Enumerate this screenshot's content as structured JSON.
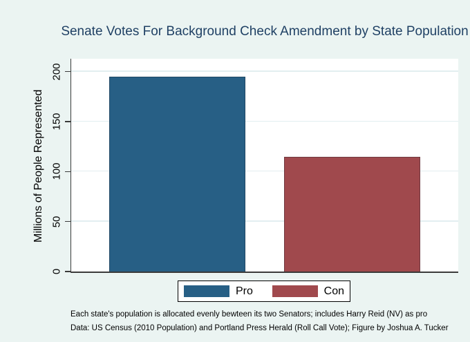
{
  "chart_data": {
    "type": "bar",
    "title": "Senate Votes For Background Check Amendment by State Population",
    "ylabel": "Millions of People Represented",
    "xlabel": "",
    "categories": [
      "Pro",
      "Con"
    ],
    "values": [
      195,
      115
    ],
    "bar_colors": [
      "#275f85",
      "#a0494d"
    ],
    "yticks": [
      0,
      50,
      100,
      150,
      200
    ],
    "ylim": [
      0,
      213
    ],
    "grid": true,
    "legend_position": "bottom-center"
  },
  "notes": {
    "line1": "Each state's population is allocated evenly bewteen its two Senators; includes Harry Reid (NV) as pro",
    "line2": "Data: US Census (2010 Population) and Portland Press Herald (Roll Call Vote); Figure by Joshua A. Tucker"
  },
  "colors": {
    "background": "#ebf4f2",
    "plot_background": "#ffffff",
    "title": "#1f4064",
    "axis": "#3a3a3a",
    "gridline": "#e2eef0"
  }
}
